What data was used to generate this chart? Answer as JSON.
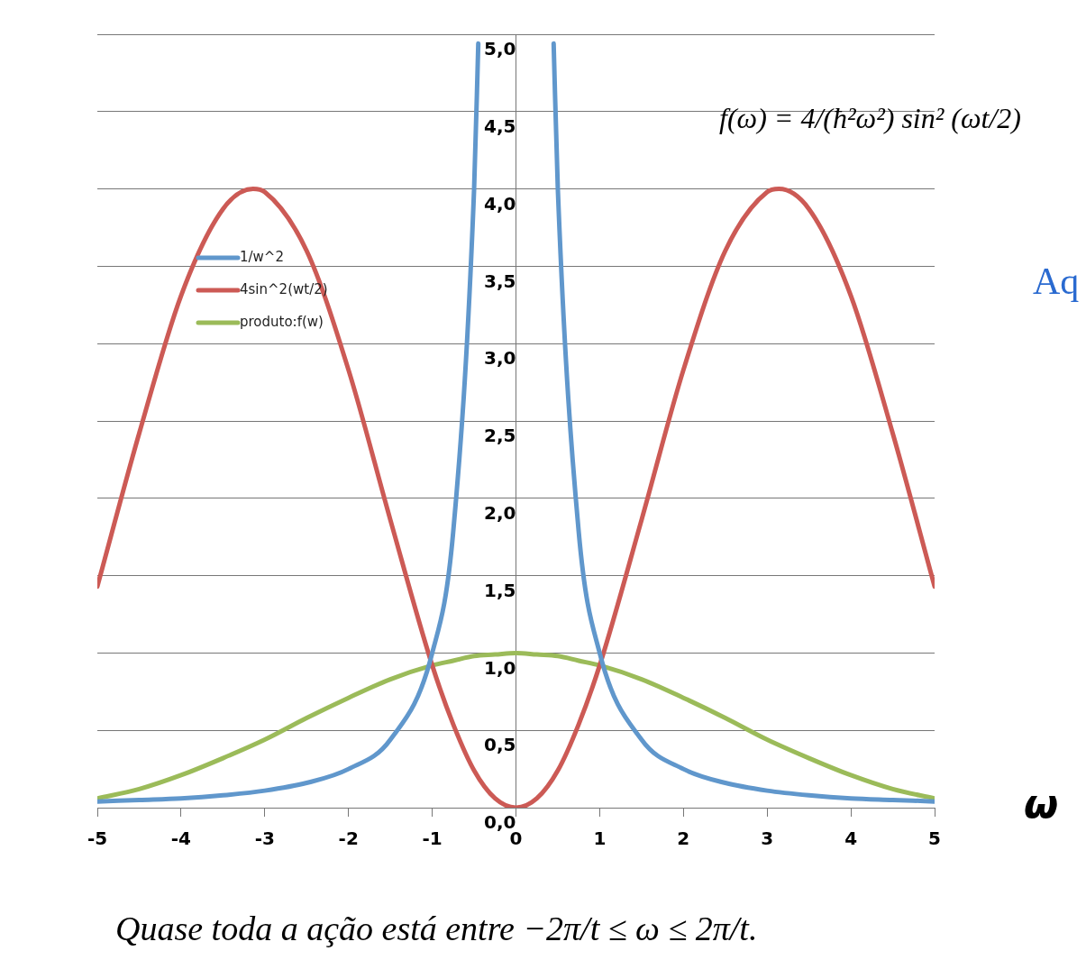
{
  "chart_data": {
    "type": "line",
    "xlabel": "ω",
    "xlim": [
      -5,
      5
    ],
    "xticks": [
      -5,
      -4,
      -3,
      -2,
      -1,
      0,
      1,
      2,
      3,
      4,
      5
    ],
    "ylim": [
      0,
      5
    ],
    "yticks": [
      {
        "value": 0,
        "label": "0,0"
      },
      {
        "value": 0.5,
        "label": "0,5"
      },
      {
        "value": 1,
        "label": "1,0"
      },
      {
        "value": 1.5,
        "label": "1,5"
      },
      {
        "value": 2,
        "label": "2,0"
      },
      {
        "value": 2.5,
        "label": "2,5"
      },
      {
        "value": 3,
        "label": "3,0"
      },
      {
        "value": 3.5,
        "label": "3,5"
      },
      {
        "value": 4,
        "label": "4,0"
      },
      {
        "value": 4.5,
        "label": "4,5"
      },
      {
        "value": 5,
        "label": "5,0"
      }
    ],
    "grid": "y",
    "legend": "top left",
    "marker": "none",
    "line_style": "solid",
    "annotations": [
      "f(ω) = 4/(ħ²ω²) sin² (ωt/2)",
      "Aq",
      "Quase toda a ação está entre −2π/t ≤ ω ≤ 2π/t."
    ],
    "series": [
      {
        "name": "1/w^2",
        "color": "#6097cc",
        "x": [
          -5,
          -4.5,
          -4,
          -3.5,
          -3,
          -2.5,
          -2,
          -1.5,
          -1,
          -0.75,
          -0.5,
          -0.45,
          0,
          0.45,
          0.5,
          0.75,
          1,
          1.5,
          2,
          2.5,
          3,
          3.5,
          4,
          4.5,
          5
        ],
        "values": [
          0.04,
          0.05,
          0.06,
          0.08,
          0.11,
          0.16,
          0.25,
          0.44,
          1.0,
          1.78,
          4.0,
          4.94,
          null,
          4.94,
          4.0,
          1.78,
          1.0,
          0.44,
          0.25,
          0.16,
          0.11,
          0.08,
          0.06,
          0.05,
          0.04
        ]
      },
      {
        "name": "4sin^2(wt/2)",
        "color": "#cc5a55",
        "x": [
          -5,
          -4.5,
          -4,
          -3.5,
          -3.14,
          -3,
          -2.5,
          -2,
          -1.5,
          -1,
          -0.75,
          -0.5,
          -0.25,
          0,
          0.25,
          0.5,
          0.75,
          1,
          1.5,
          2,
          2.5,
          3,
          3.14,
          3.5,
          4,
          4.5,
          5
        ],
        "values": [
          1.43,
          2.42,
          3.31,
          3.87,
          4.0,
          3.98,
          3.6,
          2.83,
          1.86,
          0.92,
          0.54,
          0.24,
          0.06,
          0,
          0.06,
          0.24,
          0.54,
          0.92,
          1.86,
          2.83,
          3.6,
          3.98,
          4.0,
          3.87,
          3.31,
          2.42,
          1.43
        ]
      },
      {
        "name": "produto:f(w)",
        "color": "#9bbb59",
        "x": [
          -5,
          -4.5,
          -4,
          -3.5,
          -3,
          -2.5,
          -2,
          -1.5,
          -1,
          -0.75,
          -0.5,
          -0.25,
          0,
          0.25,
          0.5,
          0.75,
          1,
          1.5,
          2,
          2.5,
          3,
          3.5,
          4,
          4.5,
          5
        ],
        "values": [
          0.06,
          0.12,
          0.21,
          0.32,
          0.44,
          0.58,
          0.71,
          0.83,
          0.92,
          0.95,
          0.98,
          0.99,
          1,
          0.99,
          0.98,
          0.95,
          0.92,
          0.83,
          0.71,
          0.58,
          0.44,
          0.32,
          0.21,
          0.12,
          0.06
        ]
      }
    ]
  }
}
